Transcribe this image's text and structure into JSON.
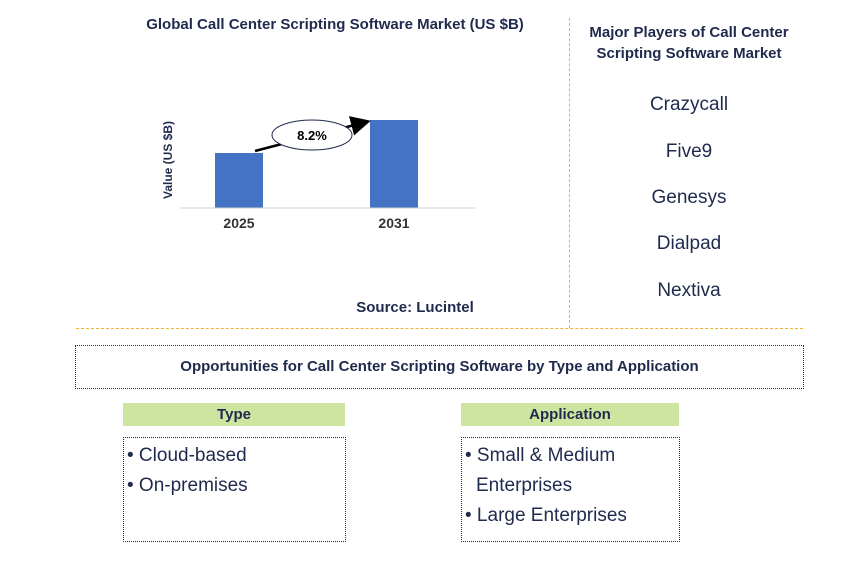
{
  "chart_data": {
    "type": "bar",
    "title": "Global Call Center Scripting Software Market (US $B)",
    "ylabel": "Value (US $B)",
    "xlabel": "",
    "categories": [
      "2025",
      "2031"
    ],
    "values": [
      1.0,
      1.6
    ],
    "annotation": "8.2%",
    "bar_color": "#4472c4",
    "grid": false,
    "source": "Source: Lucintel"
  },
  "players": {
    "title": "Major Players of Call Center Scripting Software Market",
    "items": [
      "Crazycall",
      "Five9",
      "Genesys",
      "Dialpad",
      "Nextiva"
    ]
  },
  "opportunities": {
    "title": "Opportunities for Call Center Scripting Software by Type and Application",
    "type": {
      "header": "Type",
      "items": [
        "• Cloud-based",
        "• On-premises"
      ]
    },
    "application": {
      "header": "Application",
      "items": [
        "• Small & Medium Enterprises",
        "• Large Enterprises"
      ]
    }
  },
  "colors": {
    "divider": "#f2b12e",
    "header_bg": "#cde5a0",
    "text": "#1f2a4d"
  }
}
